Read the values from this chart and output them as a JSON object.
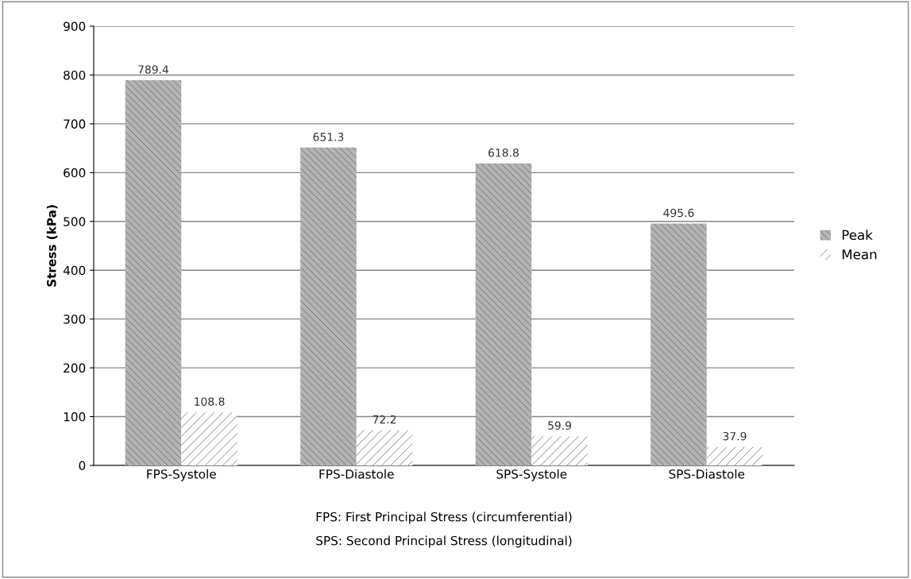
{
  "chart_data": {
    "type": "bar",
    "ylabel": "Stress (kPa)",
    "categories": [
      "FPS-Systole",
      "FPS-Diastole",
      "SPS-Systole",
      "SPS-Diastole"
    ],
    "series": [
      {
        "name": "Peak",
        "color": "#b4b4b4",
        "values": [
          789.4,
          651.3,
          618.8,
          495.6
        ]
      },
      {
        "name": "Mean",
        "color": "#ffffff",
        "values": [
          108.8,
          72.2,
          59.9,
          37.9
        ]
      }
    ],
    "ylim": [
      0,
      900
    ],
    "yticks": [
      0,
      100,
      200,
      300,
      400,
      500,
      600,
      700,
      800,
      900
    ],
    "grid": "y",
    "legend": "right",
    "data_labels": true,
    "annotations": [
      "FPS: First Principal Stress (circumferential)",
      "SPS: Second Principal Stress (longitudinal)"
    ]
  }
}
